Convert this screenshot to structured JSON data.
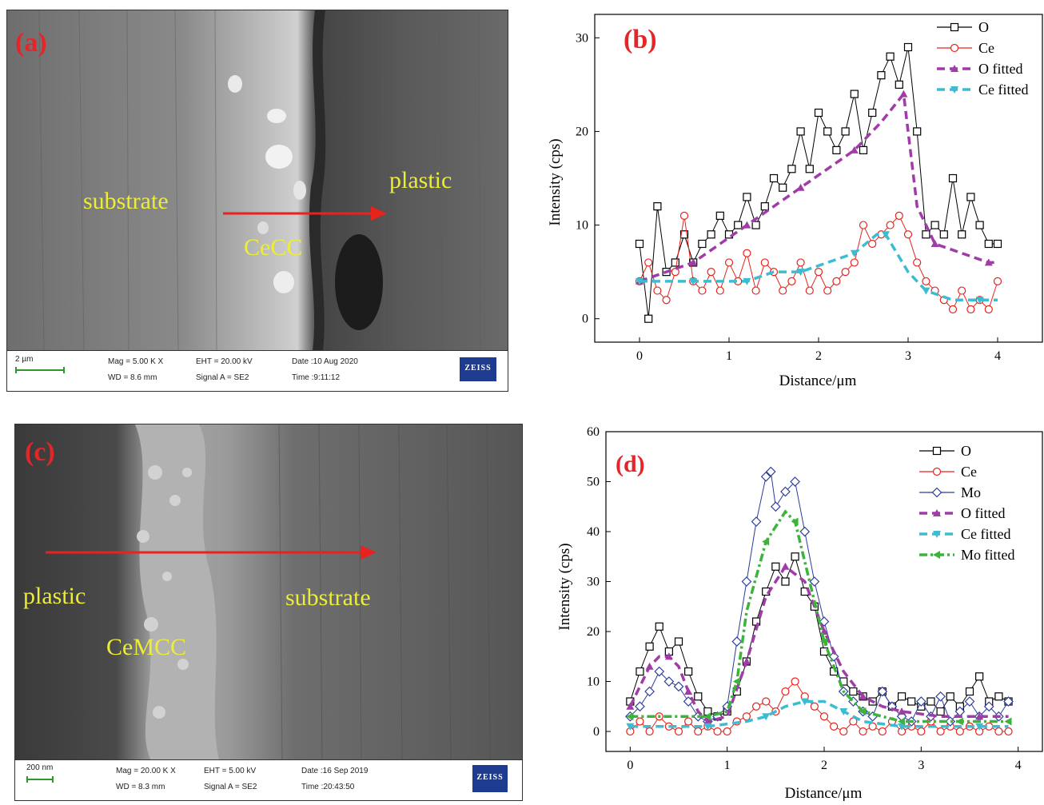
{
  "panel_a": {
    "letter": "(a)",
    "labels": {
      "substrate": "substrate",
      "coating": "CeCC",
      "plastic": "plastic"
    },
    "scale": "2 µm",
    "mag": "Mag =   5.00 K X",
    "wd": "WD =  8.6 mm",
    "eht": "EHT = 20.00 kV",
    "signal": "Signal A = SE2",
    "date": "Date :10 Aug 2020",
    "time": "Time :9:11:12",
    "brand": "ZEISS",
    "arrow_color": "#e8221c"
  },
  "panel_c": {
    "letter": "(c)",
    "labels": {
      "plastic": "plastic",
      "coating": "CeMCC",
      "substrate": "substrate"
    },
    "scale": "200 nm",
    "mag": "Mag =   20.00 K X",
    "wd": "WD =  8.3 mm",
    "eht": "EHT =  5.00 kV",
    "signal": "Signal A = SE2",
    "date": "Date :16 Sep 2019",
    "time": "Time :20:43:50",
    "brand": "ZEISS",
    "arrow_color": "#e8221c"
  },
  "chart_data": [
    {
      "type": "line",
      "panel": "(b)",
      "xlabel": "Distance/μm",
      "ylabel": "Intensity (cps)",
      "xlim": [
        -0.5,
        4.5
      ],
      "ylim": [
        -2.5,
        32.5
      ],
      "xticks": [
        0,
        1,
        2,
        3,
        4
      ],
      "yticks": [
        0,
        10,
        20,
        30
      ],
      "legend_position": "top-right",
      "colors": {
        "O": "#000000",
        "Ce": "#e8221c",
        "O fitted": "#a03ca8",
        "Ce fitted": "#3cbcd0"
      },
      "series": [
        {
          "name": "O",
          "x": [
            0,
            0.1,
            0.2,
            0.3,
            0.4,
            0.5,
            0.6,
            0.7,
            0.8,
            0.9,
            1.0,
            1.1,
            1.2,
            1.3,
            1.4,
            1.5,
            1.6,
            1.7,
            1.8,
            1.9,
            2.0,
            2.1,
            2.2,
            2.3,
            2.4,
            2.5,
            2.6,
            2.7,
            2.8,
            2.9,
            3.0,
            3.1,
            3.2,
            3.3,
            3.4,
            3.5,
            3.6,
            3.7,
            3.8,
            3.9,
            4.0
          ],
          "values": [
            8,
            0,
            12,
            5,
            6,
            9,
            6,
            8,
            9,
            11,
            9,
            10,
            13,
            10,
            12,
            15,
            14,
            16,
            20,
            16,
            22,
            20,
            18,
            20,
            24,
            18,
            22,
            26,
            28,
            25,
            29,
            20,
            9,
            10,
            9,
            15,
            9,
            13,
            10,
            8,
            8
          ]
        },
        {
          "name": "Ce",
          "x": [
            0,
            0.1,
            0.2,
            0.3,
            0.4,
            0.5,
            0.6,
            0.7,
            0.8,
            0.9,
            1.0,
            1.1,
            1.2,
            1.3,
            1.4,
            1.5,
            1.6,
            1.7,
            1.8,
            1.9,
            2.0,
            2.1,
            2.2,
            2.3,
            2.4,
            2.5,
            2.6,
            2.7,
            2.8,
            2.9,
            3.0,
            3.1,
            3.2,
            3.3,
            3.4,
            3.5,
            3.6,
            3.7,
            3.8,
            3.9,
            4.0
          ],
          "values": [
            4,
            6,
            3,
            2,
            5,
            11,
            4,
            3,
            5,
            3,
            6,
            4,
            7,
            3,
            6,
            5,
            3,
            4,
            6,
            3,
            5,
            3,
            4,
            5,
            6,
            10,
            8,
            9,
            10,
            11,
            9,
            6,
            4,
            3,
            2,
            1,
            3,
            1,
            2,
            1,
            4
          ]
        },
        {
          "name": "O fitted",
          "x": [
            0,
            0.3,
            0.6,
            0.9,
            1.2,
            1.5,
            1.8,
            2.1,
            2.4,
            2.7,
            2.95,
            3.1,
            3.3,
            3.6,
            3.9,
            4.0
          ],
          "values": [
            4,
            5,
            6,
            8,
            10,
            12,
            14,
            16,
            18,
            21,
            24,
            12,
            8,
            7,
            6,
            6
          ]
        },
        {
          "name": "Ce fitted",
          "x": [
            0,
            0.3,
            0.6,
            0.9,
            1.2,
            1.5,
            1.8,
            2.1,
            2.4,
            2.65,
            2.75,
            3.0,
            3.2,
            3.5,
            3.8,
            4.0
          ],
          "values": [
            4,
            4,
            4,
            4,
            4,
            5,
            5,
            6,
            7,
            9,
            9,
            5,
            3,
            2,
            2,
            2
          ]
        }
      ]
    },
    {
      "type": "line",
      "panel": "(d)",
      "xlabel": "Distance/μm",
      "ylabel": "Intensity (cps)",
      "xlim": [
        -0.25,
        4.25
      ],
      "ylim": [
        -4,
        60
      ],
      "xticks": [
        0,
        1,
        2,
        3,
        4
      ],
      "yticks": [
        0,
        10,
        20,
        30,
        40,
        50,
        60
      ],
      "legend_position": "top-right",
      "colors": {
        "O": "#000000",
        "Ce": "#e8221c",
        "Mo": "#2c3c9c",
        "O fitted": "#a03ca8",
        "Ce fitted": "#3cbcd0",
        "Mo fitted": "#3cb43c"
      },
      "series": [
        {
          "name": "O",
          "x": [
            0,
            0.1,
            0.2,
            0.3,
            0.4,
            0.5,
            0.6,
            0.7,
            0.8,
            0.9,
            1.0,
            1.1,
            1.2,
            1.3,
            1.4,
            1.5,
            1.6,
            1.7,
            1.8,
            1.9,
            2.0,
            2.1,
            2.2,
            2.3,
            2.4,
            2.5,
            2.6,
            2.7,
            2.8,
            2.9,
            3.0,
            3.1,
            3.2,
            3.3,
            3.4,
            3.5,
            3.6,
            3.7,
            3.8,
            3.9
          ],
          "values": [
            6,
            12,
            17,
            21,
            16,
            18,
            12,
            7,
            4,
            3,
            4,
            8,
            14,
            22,
            28,
            33,
            30,
            35,
            28,
            25,
            16,
            12,
            10,
            8,
            7,
            6,
            8,
            5,
            7,
            6,
            5,
            6,
            4,
            7,
            5,
            8,
            11,
            6,
            7,
            6
          ]
        },
        {
          "name": "Ce",
          "x": [
            0,
            0.1,
            0.2,
            0.3,
            0.4,
            0.5,
            0.6,
            0.7,
            0.8,
            0.9,
            1.0,
            1.1,
            1.2,
            1.3,
            1.4,
            1.5,
            1.6,
            1.7,
            1.8,
            1.9,
            2.0,
            2.1,
            2.2,
            2.3,
            2.4,
            2.5,
            2.6,
            2.7,
            2.8,
            2.9,
            3.0,
            3.1,
            3.2,
            3.3,
            3.4,
            3.5,
            3.6,
            3.7,
            3.8,
            3.9
          ],
          "values": [
            0,
            2,
            0,
            3,
            1,
            0,
            2,
            0,
            1,
            0,
            0,
            2,
            3,
            5,
            6,
            4,
            8,
            10,
            7,
            5,
            3,
            1,
            0,
            2,
            0,
            1,
            0,
            2,
            0,
            1,
            0,
            2,
            0,
            1,
            0,
            1,
            0,
            1,
            0,
            0
          ]
        },
        {
          "name": "Mo",
          "x": [
            0,
            0.1,
            0.2,
            0.3,
            0.4,
            0.5,
            0.6,
            0.7,
            0.8,
            0.9,
            1.0,
            1.1,
            1.2,
            1.3,
            1.4,
            1.45,
            1.5,
            1.6,
            1.7,
            1.8,
            1.9,
            2.0,
            2.1,
            2.2,
            2.3,
            2.4,
            2.5,
            2.6,
            2.7,
            2.8,
            2.9,
            3.0,
            3.1,
            3.2,
            3.3,
            3.4,
            3.5,
            3.6,
            3.7,
            3.8,
            3.9
          ],
          "values": [
            3,
            5,
            8,
            12,
            10,
            9,
            6,
            3,
            2,
            3,
            5,
            18,
            30,
            42,
            51,
            52,
            45,
            48,
            50,
            40,
            30,
            22,
            15,
            8,
            6,
            4,
            3,
            8,
            5,
            3,
            2,
            6,
            3,
            7,
            2,
            4,
            6,
            3,
            5,
            3,
            6
          ]
        },
        {
          "name": "O fitted",
          "x": [
            0,
            0.1,
            0.2,
            0.3,
            0.4,
            0.5,
            0.6,
            0.7,
            0.8,
            1.0,
            1.2,
            1.4,
            1.6,
            1.8,
            2.0,
            2.2,
            2.4,
            2.6,
            2.8,
            3.2,
            3.6,
            3.9
          ],
          "values": [
            5,
            9,
            13,
            15,
            15,
            13,
            8,
            4,
            2,
            3,
            14,
            27,
            33,
            30,
            20,
            12,
            7,
            5,
            4,
            3,
            3,
            3
          ]
        },
        {
          "name": "Ce fitted",
          "x": [
            0,
            0.4,
            0.8,
            1.2,
            1.4,
            1.6,
            1.8,
            2.0,
            2.2,
            2.4,
            2.8,
            3.2,
            3.6,
            3.9
          ],
          "values": [
            1,
            1,
            1,
            2,
            3,
            5,
            6,
            6,
            4,
            2,
            1,
            1,
            1,
            1
          ]
        },
        {
          "name": "Mo fitted",
          "x": [
            0,
            0.4,
            0.8,
            1.0,
            1.1,
            1.2,
            1.4,
            1.6,
            1.7,
            1.8,
            2.0,
            2.2,
            2.4,
            2.6,
            2.8,
            3.0,
            3.4,
            3.8,
            3.9
          ],
          "values": [
            3,
            3,
            3,
            4,
            10,
            24,
            38,
            44,
            42,
            34,
            18,
            8,
            4,
            3,
            2,
            2,
            2,
            2,
            2
          ]
        }
      ]
    }
  ],
  "legend_b": [
    "O",
    "Ce",
    "O fitted",
    "Ce fitted"
  ],
  "legend_d": [
    "O",
    "Ce",
    "Mo",
    "O fitted",
    "Ce fitted",
    "Mo fitted"
  ]
}
